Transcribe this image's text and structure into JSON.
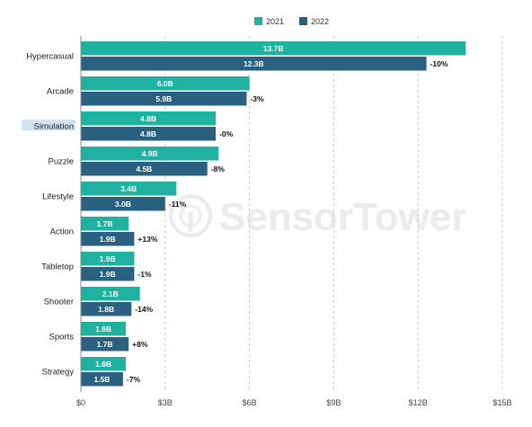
{
  "chart_data": {
    "type": "bar",
    "orientation": "horizontal",
    "categories": [
      "Hypercasual",
      "Arcade",
      "Simulation",
      "Puzzle",
      "Lifestyle",
      "Action",
      "Tabletop",
      "Shooter",
      "Sports",
      "Strategy"
    ],
    "series": [
      {
        "name": "2021",
        "color": "#20b2a1",
        "values": [
          13.7,
          6.0,
          4.8,
          4.9,
          3.4,
          1.7,
          1.9,
          2.1,
          1.6,
          1.6
        ],
        "labels": [
          "13.7B",
          "6.0B",
          "4.8B",
          "4.9B",
          "3.4B",
          "1.7B",
          "1.9B",
          "2.1B",
          "1.6B",
          "1.6B"
        ]
      },
      {
        "name": "2022",
        "color": "#2a6180",
        "values": [
          12.3,
          5.9,
          4.8,
          4.5,
          3.0,
          1.9,
          1.9,
          1.8,
          1.7,
          1.5
        ],
        "labels": [
          "12.3B",
          "5.9B",
          "4.8B",
          "4.5B",
          "3.0B",
          "1.9B",
          "1.9B",
          "1.8B",
          "1.7B",
          "1.5B"
        ]
      }
    ],
    "annotations": [
      "-10%",
      "-3%",
      "-0%",
      "-8%",
      "-11%",
      "+13%",
      "-1%",
      "-14%",
      "+8%",
      "-7%"
    ],
    "xlim": [
      0,
      15
    ],
    "xticks": [
      "$0",
      "$3B",
      "$6B",
      "$9B",
      "$12B",
      "$15B"
    ],
    "grid": true,
    "legend_position": "top-center",
    "highlighted_category": "Simulation",
    "highlight_color": "#cfe3f3",
    "watermark": "SensorTower",
    "title": "",
    "xlabel": "",
    "ylabel": ""
  }
}
